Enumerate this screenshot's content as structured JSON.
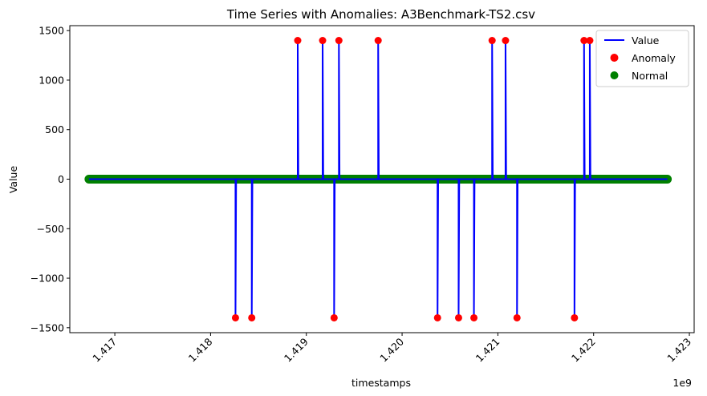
{
  "chart_data": {
    "type": "line",
    "title": "Time Series with Anomalies: A3Benchmark-TS2.csv",
    "xlabel": "timestamps",
    "ylabel": "Value",
    "x_offset_label": "1e9",
    "xlim": [
      1.41653,
      1.42305
    ],
    "ylim": [
      -1550,
      1550
    ],
    "x_ticks": [
      1.417,
      1.418,
      1.419,
      1.42,
      1.421,
      1.422,
      1.423
    ],
    "x_tick_labels": [
      "1.417",
      "1.418",
      "1.419",
      "1.420",
      "1.421",
      "1.422",
      "1.423"
    ],
    "y_ticks": [
      -1500,
      -1000,
      -500,
      0,
      500,
      1000,
      1500
    ],
    "y_tick_labels": [
      "−1500",
      "−1000",
      "−500",
      "0",
      "500",
      "1000",
      "1500"
    ],
    "baseline": {
      "x_start": 1.41673,
      "x_end": 1.42277,
      "y": 0
    },
    "anomalies": [
      {
        "x": 1.41826,
        "y": -1400
      },
      {
        "x": 1.41843,
        "y": -1400
      },
      {
        "x": 1.41891,
        "y": 1400
      },
      {
        "x": 1.41917,
        "y": 1400
      },
      {
        "x": 1.41929,
        "y": -1400
      },
      {
        "x": 1.41934,
        "y": 1400
      },
      {
        "x": 1.41975,
        "y": 1400
      },
      {
        "x": 1.42037,
        "y": -1400
      },
      {
        "x": 1.42059,
        "y": -1400
      },
      {
        "x": 1.42075,
        "y": -1400
      },
      {
        "x": 1.42094,
        "y": 1400
      },
      {
        "x": 1.42108,
        "y": 1400
      },
      {
        "x": 1.4212,
        "y": -1400
      },
      {
        "x": 1.4218,
        "y": -1400
      },
      {
        "x": 1.4219,
        "y": 1400
      },
      {
        "x": 1.42196,
        "y": 1400
      }
    ],
    "series": [
      {
        "name": "Value",
        "color": "#0000ff",
        "style": "line"
      },
      {
        "name": "Anomaly",
        "color": "#ff0000",
        "style": "scatter"
      },
      {
        "name": "Normal",
        "color": "#008000",
        "style": "scatter"
      }
    ],
    "legend_position": "top-right",
    "grid": false
  }
}
